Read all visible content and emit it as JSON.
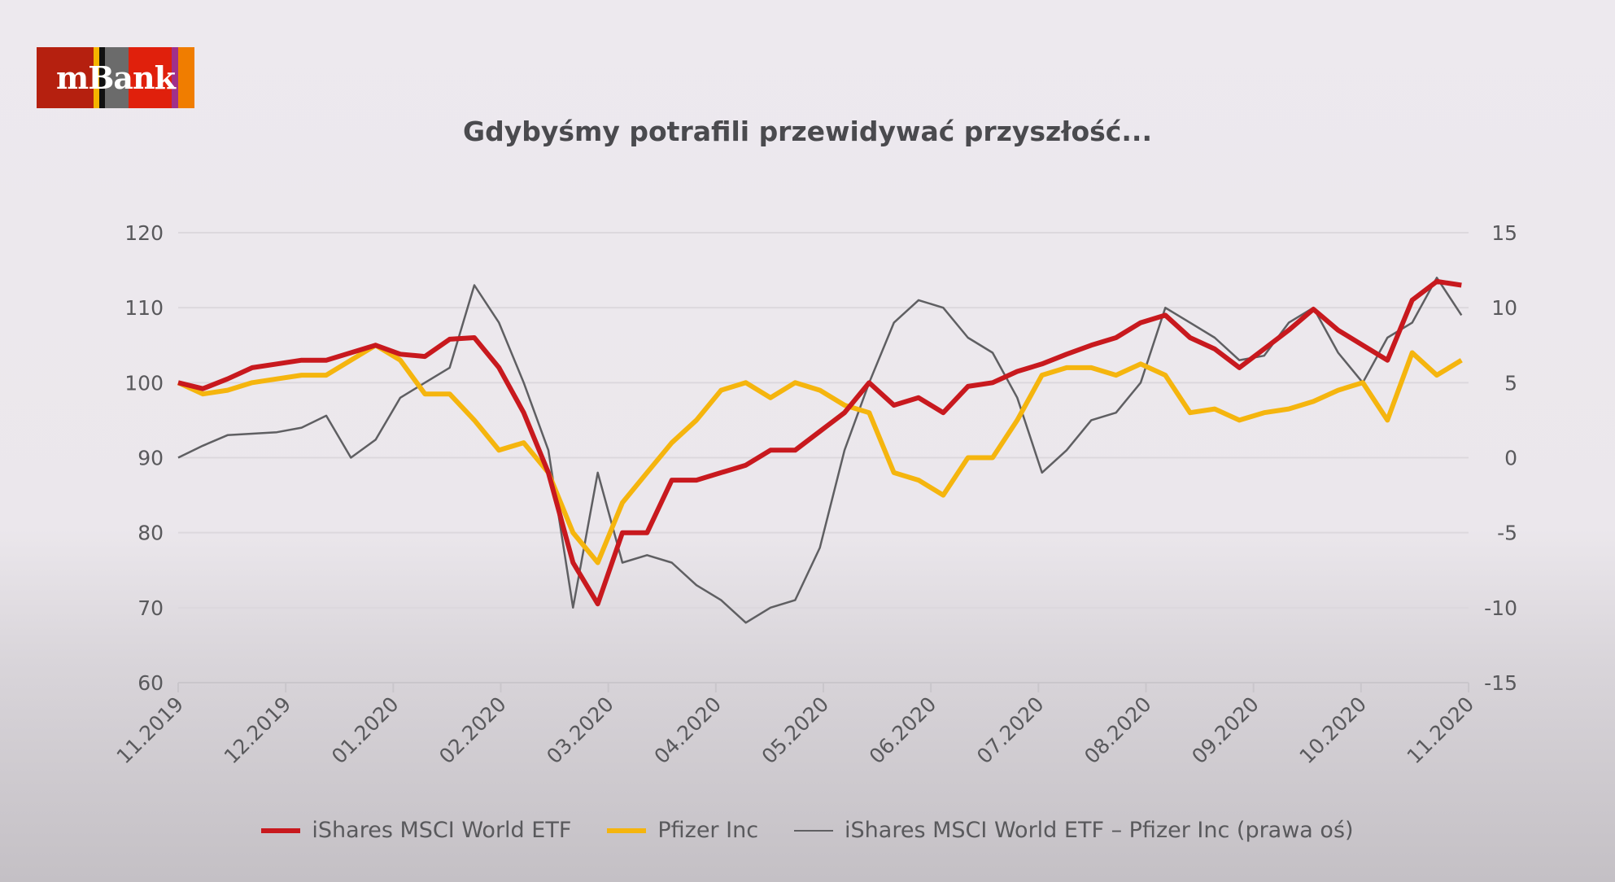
{
  "logo": {
    "text": "mBank",
    "colors": [
      "#b5200f",
      "#f5b400",
      "#111111",
      "#6b6b6b",
      "#e0200c",
      "#a0308a",
      "#f07d00"
    ]
  },
  "chart_data": {
    "type": "line",
    "title": "Gdybyśmy potrafili przewidywać przyszłość...",
    "x_tick_labels": [
      "11.2019",
      "12.2019",
      "01.2020",
      "02.2020",
      "03.2020",
      "04.2020",
      "05.2020",
      "06.2020",
      "07.2020",
      "08.2020",
      "09.2020",
      "10.2020",
      "11.2020"
    ],
    "x_range": [
      "2019-11-01",
      "2020-11-01"
    ],
    "y_left": {
      "range": [
        60,
        120
      ],
      "ticks": [
        60,
        70,
        80,
        90,
        100,
        110,
        120
      ]
    },
    "y_right": {
      "range": [
        -15,
        15
      ],
      "ticks": [
        -15,
        -10,
        -5,
        0,
        5,
        10,
        15
      ]
    },
    "grid": true,
    "legend_position": "bottom",
    "x": [
      "2019-11-01",
      "2019-11-08",
      "2019-11-15",
      "2019-11-22",
      "2019-11-29",
      "2019-12-06",
      "2019-12-13",
      "2019-12-20",
      "2019-12-27",
      "2020-01-03",
      "2020-01-10",
      "2020-01-17",
      "2020-01-24",
      "2020-01-31",
      "2020-02-07",
      "2020-02-14",
      "2020-02-21",
      "2020-02-28",
      "2020-03-06",
      "2020-03-13",
      "2020-03-20",
      "2020-03-27",
      "2020-04-03",
      "2020-04-10",
      "2020-04-17",
      "2020-04-24",
      "2020-05-01",
      "2020-05-08",
      "2020-05-15",
      "2020-05-22",
      "2020-05-29",
      "2020-06-05",
      "2020-06-12",
      "2020-06-19",
      "2020-06-26",
      "2020-07-03",
      "2020-07-10",
      "2020-07-17",
      "2020-07-24",
      "2020-07-31",
      "2020-08-07",
      "2020-08-14",
      "2020-08-21",
      "2020-08-28",
      "2020-09-04",
      "2020-09-11",
      "2020-09-18",
      "2020-09-25",
      "2020-10-02",
      "2020-10-09",
      "2020-10-16",
      "2020-10-23",
      "2020-10-30"
    ],
    "series": [
      {
        "name": "iShares MSCI World ETF",
        "axis": "left",
        "color": "#c8191e",
        "values": [
          100,
          99.2,
          100.5,
          102,
          102.5,
          103,
          103,
          104,
          105,
          103.8,
          103.5,
          105.8,
          106,
          102,
          96,
          88,
          76,
          70.5,
          80,
          80,
          87,
          87,
          88,
          89,
          91,
          91,
          93.5,
          96,
          100,
          97,
          98,
          96,
          99.5,
          100,
          101.5,
          102.5,
          103.8,
          105,
          106,
          108,
          109,
          106,
          104.5,
          102,
          104.5,
          107,
          109.8,
          107,
          105,
          103,
          111,
          113.5,
          113
        ]
      },
      {
        "name": "Pfizer Inc",
        "axis": "left",
        "color": "#f5b50e",
        "values": [
          100,
          98.5,
          99,
          100,
          100.5,
          101,
          101,
          103,
          105,
          103,
          98.5,
          98.5,
          95,
          91,
          92,
          88,
          80,
          76,
          84,
          88,
          92,
          95,
          99,
          100,
          98,
          100,
          99,
          97,
          96,
          88,
          87,
          85,
          90,
          90,
          95,
          101,
          102,
          102,
          101,
          102.5,
          101,
          96,
          96.5,
          95,
          96,
          96.5,
          97.5,
          99,
          100,
          95,
          104,
          101,
          103
        ]
      },
      {
        "name": "iShares MSCI World ETF – Pfizer Inc (prawa oś)",
        "axis": "right",
        "color": "#5f5f62",
        "values": [
          0,
          0.8,
          1.5,
          1.6,
          1.7,
          2,
          2.8,
          0,
          1.2,
          4,
          5,
          6,
          11.5,
          9,
          5,
          0.5,
          -10,
          -1,
          -7,
          -6.5,
          -7,
          -8.5,
          -9.5,
          -11,
          -10,
          -9.5,
          -6,
          0.5,
          5,
          9,
          10.5,
          10,
          8,
          7,
          4,
          -1,
          0.5,
          2.5,
          3,
          5,
          10,
          9,
          8,
          6.5,
          6.8,
          9,
          10,
          7,
          5,
          8,
          9,
          12,
          9.5
        ]
      }
    ]
  }
}
